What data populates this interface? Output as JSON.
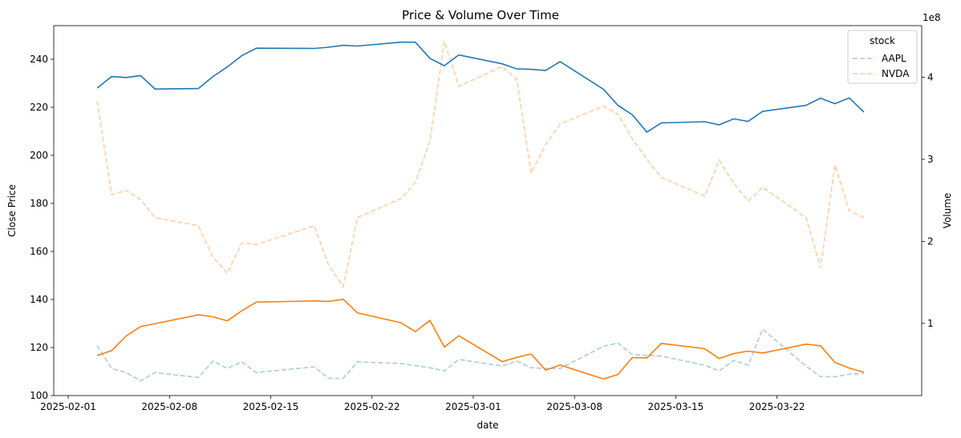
{
  "chart_data": {
    "type": "line",
    "title": "Price & Volume Over Time",
    "xlabel": "date",
    "ylabel_left": "Close Price",
    "ylabel_right": "Volume",
    "right_axis_offset_label": "1e8",
    "x_ticks": [
      "2025-02-01",
      "2025-02-08",
      "2025-02-15",
      "2025-02-22",
      "2025-03-01",
      "2025-03-08",
      "2025-03-15",
      "2025-03-22"
    ],
    "xlim": [
      "2025-01-31",
      "2025-04-01"
    ],
    "ylim_left": [
      100,
      254
    ],
    "yticks_left": [
      100,
      120,
      140,
      160,
      180,
      200,
      220,
      240
    ],
    "ylim_right": [
      0.12,
      4.63
    ],
    "yticks_right": [
      1,
      2,
      3,
      4
    ],
    "legend": {
      "title": "stock",
      "position": "top-right",
      "entries": [
        "AAPL",
        "NVDA"
      ]
    },
    "colors": {
      "AAPL": "#1f77b4",
      "NVDA": "#ff7f0e"
    },
    "close_series": [
      {
        "name": "AAPL",
        "points": [
          [
            "2025-02-03",
            228
          ],
          [
            "2025-02-04",
            232.8
          ],
          [
            "2025-02-05",
            232.4
          ],
          [
            "2025-02-06",
            233.2
          ],
          [
            "2025-02-07",
            227.6
          ],
          [
            "2025-02-10",
            227.8
          ],
          [
            "2025-02-11",
            232.8
          ],
          [
            "2025-02-12",
            236.8
          ],
          [
            "2025-02-13",
            241.5
          ],
          [
            "2025-02-14",
            244.6
          ],
          [
            "2025-02-18",
            244.5
          ],
          [
            "2025-02-19",
            245
          ],
          [
            "2025-02-20",
            245.8
          ],
          [
            "2025-02-21",
            245.5
          ],
          [
            "2025-02-24",
            247.1
          ],
          [
            "2025-02-25",
            247.1
          ],
          [
            "2025-02-26",
            240.4
          ],
          [
            "2025-02-27",
            237.3
          ],
          [
            "2025-02-28",
            241.8
          ],
          [
            "2025-03-03",
            238.1
          ],
          [
            "2025-03-04",
            236
          ],
          [
            "2025-03-05",
            235.8
          ],
          [
            "2025-03-06",
            235.3
          ],
          [
            "2025-03-07",
            239
          ],
          [
            "2025-03-10",
            227.5
          ],
          [
            "2025-03-11",
            220.8
          ],
          [
            "2025-03-12",
            216.9
          ],
          [
            "2025-03-13",
            209.7
          ],
          [
            "2025-03-14",
            213.5
          ],
          [
            "2025-03-17",
            214
          ],
          [
            "2025-03-18",
            212.7
          ],
          [
            "2025-03-19",
            215.2
          ],
          [
            "2025-03-20",
            214.1
          ],
          [
            "2025-03-21",
            218.3
          ],
          [
            "2025-03-24",
            220.8
          ],
          [
            "2025-03-25",
            223.8
          ],
          [
            "2025-03-26",
            221.5
          ],
          [
            "2025-03-27",
            223.9
          ],
          [
            "2025-03-28",
            218
          ]
        ]
      },
      {
        "name": "NVDA",
        "points": [
          [
            "2025-02-03",
            116.7
          ],
          [
            "2025-02-04",
            118.7
          ],
          [
            "2025-02-05",
            124.8
          ],
          [
            "2025-02-06",
            128.7
          ],
          [
            "2025-02-10",
            133.6
          ],
          [
            "2025-02-11",
            132.8
          ],
          [
            "2025-02-12",
            131.1
          ],
          [
            "2025-02-13",
            135.3
          ],
          [
            "2025-02-14",
            138.9
          ],
          [
            "2025-02-18",
            139.4
          ],
          [
            "2025-02-19",
            139.2
          ],
          [
            "2025-02-20",
            140.1
          ],
          [
            "2025-02-21",
            134.4
          ],
          [
            "2025-02-24",
            130.3
          ],
          [
            "2025-02-25",
            126.6
          ],
          [
            "2025-02-26",
            131.3
          ],
          [
            "2025-02-27",
            120.2
          ],
          [
            "2025-02-28",
            124.9
          ],
          [
            "2025-03-03",
            114.1
          ],
          [
            "2025-03-04",
            115.9
          ],
          [
            "2025-03-05",
            117.3
          ],
          [
            "2025-03-06",
            110.6
          ],
          [
            "2025-03-07",
            112.7
          ],
          [
            "2025-03-10",
            106.9
          ],
          [
            "2025-03-11",
            108.8
          ],
          [
            "2025-03-12",
            115.8
          ],
          [
            "2025-03-13",
            115.7
          ],
          [
            "2025-03-14",
            121.7
          ],
          [
            "2025-03-17",
            119.5
          ],
          [
            "2025-03-18",
            115.4
          ],
          [
            "2025-03-19",
            117.5
          ],
          [
            "2025-03-20",
            118.5
          ],
          [
            "2025-03-21",
            117.7
          ],
          [
            "2025-03-24",
            121.4
          ],
          [
            "2025-03-25",
            120.7
          ],
          [
            "2025-03-26",
            113.8
          ],
          [
            "2025-03-27",
            111.4
          ],
          [
            "2025-03-28",
            109.7
          ]
        ]
      }
    ],
    "volume_series": [
      {
        "name": "AAPL",
        "unit": "1e8",
        "points": [
          [
            "2025-02-03",
            0.73
          ],
          [
            "2025-02-04",
            0.45
          ],
          [
            "2025-02-05",
            0.4
          ],
          [
            "2025-02-06",
            0.3
          ],
          [
            "2025-02-07",
            0.4
          ],
          [
            "2025-02-10",
            0.34
          ],
          [
            "2025-02-11",
            0.54
          ],
          [
            "2025-02-12",
            0.45
          ],
          [
            "2025-02-13",
            0.53
          ],
          [
            "2025-02-14",
            0.4
          ],
          [
            "2025-02-18",
            0.47
          ],
          [
            "2025-02-19",
            0.33
          ],
          [
            "2025-02-20",
            0.33
          ],
          [
            "2025-02-21",
            0.53
          ],
          [
            "2025-02-24",
            0.51
          ],
          [
            "2025-02-26",
            0.46
          ],
          [
            "2025-02-27",
            0.42
          ],
          [
            "2025-02-28",
            0.56
          ],
          [
            "2025-03-03",
            0.48
          ],
          [
            "2025-03-04",
            0.54
          ],
          [
            "2025-03-05",
            0.46
          ],
          [
            "2025-03-06",
            0.45
          ],
          [
            "2025-03-07",
            0.45
          ],
          [
            "2025-03-10",
            0.72
          ],
          [
            "2025-03-11",
            0.76
          ],
          [
            "2025-03-12",
            0.62
          ],
          [
            "2025-03-13",
            0.61
          ],
          [
            "2025-03-14",
            0.6
          ],
          [
            "2025-03-17",
            0.49
          ],
          [
            "2025-03-18",
            0.42
          ],
          [
            "2025-03-19",
            0.55
          ],
          [
            "2025-03-20",
            0.49
          ],
          [
            "2025-03-21",
            0.93
          ],
          [
            "2025-03-24",
            0.48
          ],
          [
            "2025-03-25",
            0.35
          ],
          [
            "2025-03-26",
            0.35
          ],
          [
            "2025-03-27",
            0.38
          ],
          [
            "2025-03-28",
            0.39
          ]
        ]
      },
      {
        "name": "NVDA",
        "unit": "1e8",
        "points": [
          [
            "2025-02-03",
            3.71
          ],
          [
            "2025-02-04",
            2.57
          ],
          [
            "2025-02-05",
            2.62
          ],
          [
            "2025-02-06",
            2.51
          ],
          [
            "2025-02-07",
            2.29
          ],
          [
            "2025-02-10",
            2.19
          ],
          [
            "2025-02-11",
            1.81
          ],
          [
            "2025-02-12",
            1.61
          ],
          [
            "2025-02-13",
            1.98
          ],
          [
            "2025-02-14",
            1.96
          ],
          [
            "2025-02-18",
            2.19
          ],
          [
            "2025-02-19",
            1.71
          ],
          [
            "2025-02-20",
            1.45
          ],
          [
            "2025-02-21",
            2.29
          ],
          [
            "2025-02-24",
            2.52
          ],
          [
            "2025-02-25",
            2.72
          ],
          [
            "2025-02-26",
            3.22
          ],
          [
            "2025-02-27",
            4.44
          ],
          [
            "2025-02-28",
            3.89
          ],
          [
            "2025-03-03",
            4.13
          ],
          [
            "2025-03-04",
            3.98
          ],
          [
            "2025-03-05",
            2.83
          ],
          [
            "2025-03-06",
            3.18
          ],
          [
            "2025-03-07",
            3.43
          ],
          [
            "2025-03-10",
            3.65
          ],
          [
            "2025-03-11",
            3.55
          ],
          [
            "2025-03-12",
            3.25
          ],
          [
            "2025-03-13",
            3.0
          ],
          [
            "2025-03-14",
            2.78
          ],
          [
            "2025-03-17",
            2.55
          ],
          [
            "2025-03-18",
            2.99
          ],
          [
            "2025-03-19",
            2.71
          ],
          [
            "2025-03-20",
            2.49
          ],
          [
            "2025-03-21",
            2.66
          ],
          [
            "2025-03-24",
            2.29
          ],
          [
            "2025-03-25",
            1.68
          ],
          [
            "2025-03-26",
            2.93
          ],
          [
            "2025-03-27",
            2.37
          ],
          [
            "2025-03-28",
            2.29
          ]
        ]
      }
    ]
  }
}
